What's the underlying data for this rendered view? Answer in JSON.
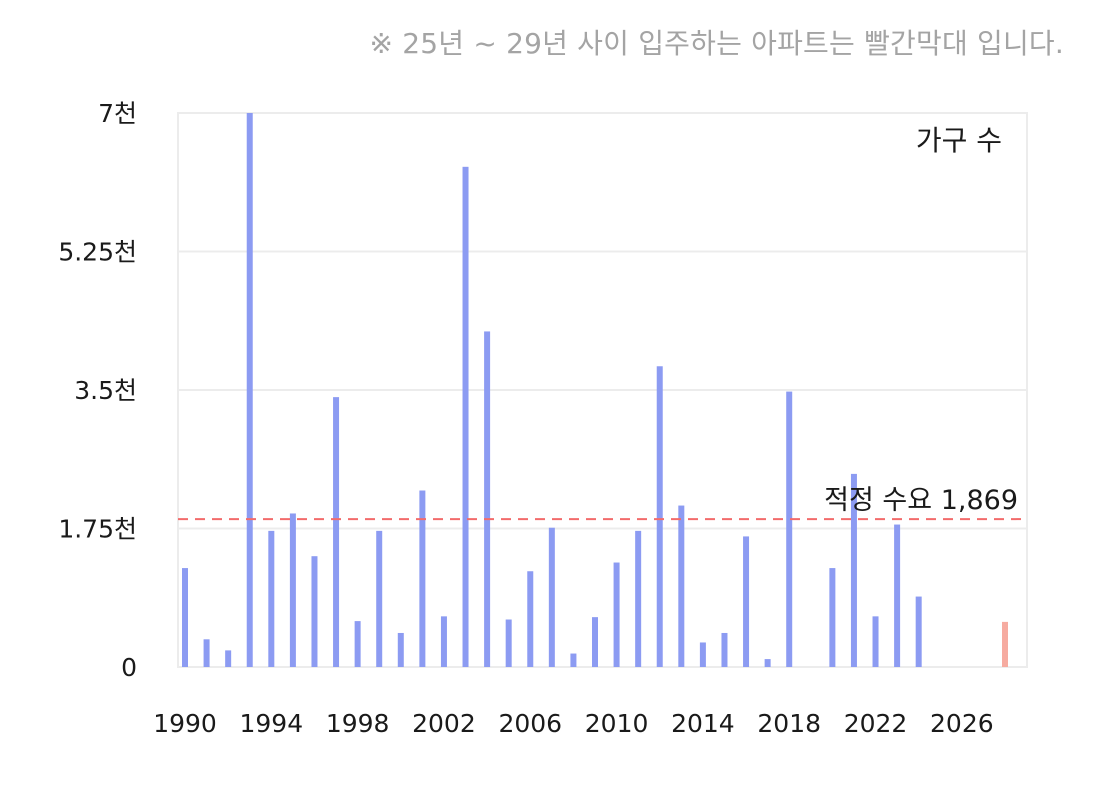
{
  "note": "※ 25년 ~ 29년 사이 입주하는 아파트는 빨간막대 입니다.",
  "colors": {
    "bar": "#8c9bf2",
    "bar_highlight": "#f6aba0",
    "reference_line": "#f26b6b",
    "grid": "#ececec",
    "text": "#1a1a1a",
    "note": "#a4a4a4"
  },
  "chart_data": {
    "type": "bar",
    "legend": "가구 수",
    "legend_position": "top-right",
    "ylim": [
      0,
      7000
    ],
    "xlim": [
      1990,
      2029
    ],
    "grid": true,
    "y_ticks": [
      {
        "value": 0,
        "label": "0"
      },
      {
        "value": 1750,
        "label": "1.75천"
      },
      {
        "value": 3500,
        "label": "3.5천"
      },
      {
        "value": 5250,
        "label": "5.25천"
      },
      {
        "value": 7000,
        "label": "7천"
      }
    ],
    "x_ticks": [
      {
        "value": 1990,
        "label": "1990"
      },
      {
        "value": 1994,
        "label": "1994"
      },
      {
        "value": 1998,
        "label": "1998"
      },
      {
        "value": 2002,
        "label": "2002"
      },
      {
        "value": 2006,
        "label": "2006"
      },
      {
        "value": 2010,
        "label": "2010"
      },
      {
        "value": 2014,
        "label": "2014"
      },
      {
        "value": 2018,
        "label": "2018"
      },
      {
        "value": 2022,
        "label": "2022"
      },
      {
        "value": 2026,
        "label": "2026"
      }
    ],
    "reference_line": {
      "value": 1869,
      "label": "적정 수요 1,869"
    },
    "bars": [
      {
        "x": 1990,
        "y": 1250,
        "highlight": false
      },
      {
        "x": 1991,
        "y": 350,
        "highlight": false
      },
      {
        "x": 1992,
        "y": 210,
        "highlight": false
      },
      {
        "x": 1993,
        "y": 7000,
        "highlight": false
      },
      {
        "x": 1994,
        "y": 1720,
        "highlight": false
      },
      {
        "x": 1995,
        "y": 1940,
        "highlight": false
      },
      {
        "x": 1996,
        "y": 1400,
        "highlight": false
      },
      {
        "x": 1997,
        "y": 3410,
        "highlight": false
      },
      {
        "x": 1998,
        "y": 580,
        "highlight": false
      },
      {
        "x": 1999,
        "y": 1720,
        "highlight": false
      },
      {
        "x": 2000,
        "y": 430,
        "highlight": false
      },
      {
        "x": 2001,
        "y": 2230,
        "highlight": false
      },
      {
        "x": 2002,
        "y": 640,
        "highlight": false
      },
      {
        "x": 2003,
        "y": 6320,
        "highlight": false
      },
      {
        "x": 2004,
        "y": 4240,
        "highlight": false
      },
      {
        "x": 2005,
        "y": 600,
        "highlight": false
      },
      {
        "x": 2006,
        "y": 1210,
        "highlight": false
      },
      {
        "x": 2007,
        "y": 1760,
        "highlight": false
      },
      {
        "x": 2008,
        "y": 170,
        "highlight": false
      },
      {
        "x": 2009,
        "y": 630,
        "highlight": false
      },
      {
        "x": 2010,
        "y": 1320,
        "highlight": false
      },
      {
        "x": 2011,
        "y": 1720,
        "highlight": false
      },
      {
        "x": 2012,
        "y": 3800,
        "highlight": false
      },
      {
        "x": 2013,
        "y": 2040,
        "highlight": false
      },
      {
        "x": 2014,
        "y": 310,
        "highlight": false
      },
      {
        "x": 2015,
        "y": 430,
        "highlight": false
      },
      {
        "x": 2016,
        "y": 1650,
        "highlight": false
      },
      {
        "x": 2017,
        "y": 100,
        "highlight": false
      },
      {
        "x": 2018,
        "y": 3480,
        "highlight": false
      },
      {
        "x": 2020,
        "y": 1250,
        "highlight": false
      },
      {
        "x": 2021,
        "y": 2440,
        "highlight": false
      },
      {
        "x": 2022,
        "y": 640,
        "highlight": false
      },
      {
        "x": 2023,
        "y": 1800,
        "highlight": false
      },
      {
        "x": 2024,
        "y": 890,
        "highlight": false
      },
      {
        "x": 2028,
        "y": 570,
        "highlight": true
      }
    ]
  }
}
